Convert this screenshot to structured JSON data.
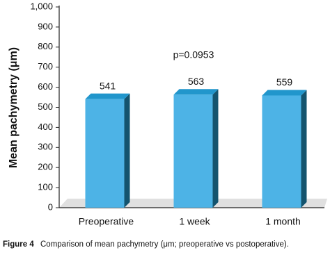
{
  "chart_data": {
    "type": "bar3d",
    "ylabel": "Mean pachymetry (μm)",
    "annotation": "p=0.0953",
    "categories": [
      "Preoperative",
      "1 week",
      "1 month"
    ],
    "values": [
      541,
      563,
      559
    ],
    "color": "#4db3e6",
    "ylim": [
      0,
      1000
    ],
    "yticks": [
      0,
      100,
      200,
      300,
      400,
      500,
      600,
      700,
      800,
      900,
      {
        "value": 1000,
        "label": "1,000"
      }
    ],
    "caption": {
      "label": "Figure 4",
      "text": "Comparison of mean pachymetry (μm; preoperative vs postoperative)."
    }
  }
}
